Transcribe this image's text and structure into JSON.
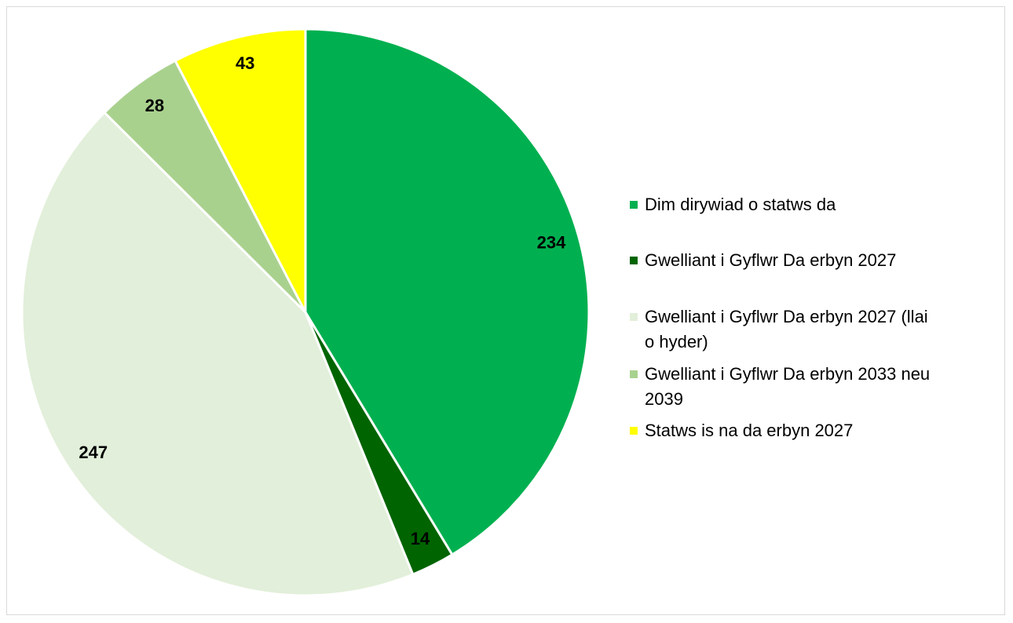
{
  "chart_data": {
    "type": "pie",
    "categories": [
      "Dim dirywiad o statws da",
      "Gwelliant i Gyflwr Da erbyn 2027",
      "Gwelliant i Gyflwr Da erbyn 2027 (llai o hyder)",
      "Gwelliant i Gyflwr Da erbyn 2033 neu 2039",
      "Statws is na da erbyn 2027"
    ],
    "values": [
      234,
      14,
      247,
      28,
      43
    ],
    "colors": [
      "#00b050",
      "#006400",
      "#e2efda",
      "#a9d18e",
      "#ffff00"
    ],
    "legend": "right"
  }
}
